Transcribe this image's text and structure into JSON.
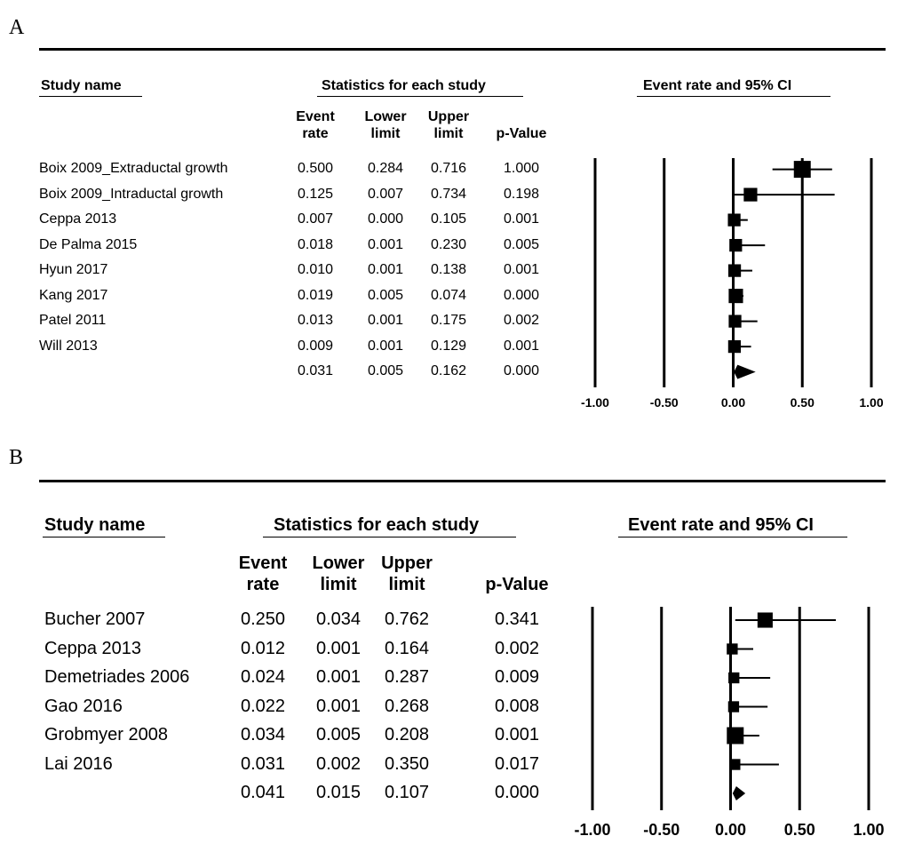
{
  "chart_data": [
    {
      "type": "table",
      "panel": "A",
      "headers": {
        "study": "Study name",
        "stats": "Statistics for each study",
        "plot": "Event rate and 95% CI",
        "columns": [
          "Event\nrate",
          "Lower\nlimit",
          "Upper\nlimit",
          "p-Value"
        ]
      },
      "rows": [
        {
          "study": "Boix 2009_Extraductal growth",
          "rate": "0.500",
          "lower": "0.284",
          "upper": "0.716",
          "p": "1.000",
          "r": 0.5,
          "lo": 0.284,
          "hi": 0.716,
          "weight": 1.0
        },
        {
          "study": "Boix 2009_Intraductal growth",
          "rate": "0.125",
          "lower": "0.007",
          "upper": "0.734",
          "p": "0.198",
          "r": 0.125,
          "lo": 0.007,
          "hi": 0.734,
          "weight": 0.8
        },
        {
          "study": "Ceppa 2013",
          "rate": "0.007",
          "lower": "0.000",
          "upper": "0.105",
          "p": "0.001",
          "r": 0.007,
          "lo": 0.0,
          "hi": 0.105,
          "weight": 0.75
        },
        {
          "study": "De Palma 2015",
          "rate": "0.018",
          "lower": "0.001",
          "upper": "0.230",
          "p": "0.005",
          "r": 0.018,
          "lo": 0.001,
          "hi": 0.23,
          "weight": 0.75
        },
        {
          "study": "Hyun 2017",
          "rate": "0.010",
          "lower": "0.001",
          "upper": "0.138",
          "p": "0.001",
          "r": 0.01,
          "lo": 0.001,
          "hi": 0.138,
          "weight": 0.75
        },
        {
          "study": "Kang 2017",
          "rate": "0.019",
          "lower": "0.005",
          "upper": "0.074",
          "p": "0.000",
          "r": 0.019,
          "lo": 0.005,
          "hi": 0.074,
          "weight": 0.85
        },
        {
          "study": "Patel 2011",
          "rate": "0.013",
          "lower": "0.001",
          "upper": "0.175",
          "p": "0.002",
          "r": 0.013,
          "lo": 0.001,
          "hi": 0.175,
          "weight": 0.75
        },
        {
          "study": "Will 2013",
          "rate": "0.009",
          "lower": "0.001",
          "upper": "0.129",
          "p": "0.001",
          "r": 0.009,
          "lo": 0.001,
          "hi": 0.129,
          "weight": 0.75
        }
      ],
      "summary": {
        "rate": "0.031",
        "lower": "0.005",
        "upper": "0.162",
        "p": "0.000",
        "r": 0.031,
        "lo": 0.005,
        "hi": 0.162
      },
      "xlim": [
        -1.0,
        1.0
      ],
      "xticks": [
        "-1.00",
        "-0.50",
        "0.00",
        "0.50",
        "1.00"
      ]
    },
    {
      "type": "table",
      "panel": "B",
      "headers": {
        "study": "Study name",
        "stats": "Statistics for each study",
        "plot": "Event rate and 95% CI",
        "columns": [
          "Event\nrate",
          "Lower\nlimit",
          "Upper\nlimit",
          "p-Value"
        ]
      },
      "rows": [
        {
          "study": "Bucher 2007",
          "rate": "0.250",
          "lower": "0.034",
          "upper": "0.762",
          "p": "0.341",
          "r": 0.25,
          "lo": 0.034,
          "hi": 0.762,
          "weight": 0.9
        },
        {
          "study": "Ceppa 2013",
          "rate": "0.012",
          "lower": "0.001",
          "upper": "0.164",
          "p": "0.002",
          "r": 0.012,
          "lo": 0.001,
          "hi": 0.164,
          "weight": 0.65
        },
        {
          "study": "Demetriades 2006",
          "rate": "0.024",
          "lower": "0.001",
          "upper": "0.287",
          "p": "0.009",
          "r": 0.024,
          "lo": 0.001,
          "hi": 0.287,
          "weight": 0.65
        },
        {
          "study": "Gao 2016",
          "rate": "0.022",
          "lower": "0.001",
          "upper": "0.268",
          "p": "0.008",
          "r": 0.022,
          "lo": 0.001,
          "hi": 0.268,
          "weight": 0.65
        },
        {
          "study": "Grobmyer 2008",
          "rate": "0.034",
          "lower": "0.005",
          "upper": "0.208",
          "p": "0.001",
          "r": 0.034,
          "lo": 0.005,
          "hi": 0.208,
          "weight": 1.0
        },
        {
          "study": "Lai 2016",
          "rate": "0.031",
          "lower": "0.002",
          "upper": "0.350",
          "p": "0.017",
          "r": 0.031,
          "lo": 0.002,
          "hi": 0.35,
          "weight": 0.65
        }
      ],
      "summary": {
        "rate": "0.041",
        "lower": "0.015",
        "upper": "0.107",
        "p": "0.000",
        "r": 0.041,
        "lo": 0.015,
        "hi": 0.107
      },
      "xlim": [
        -1.0,
        1.0
      ],
      "xticks": [
        "-1.00",
        "-0.50",
        "0.00",
        "0.50",
        "1.00"
      ]
    }
  ]
}
